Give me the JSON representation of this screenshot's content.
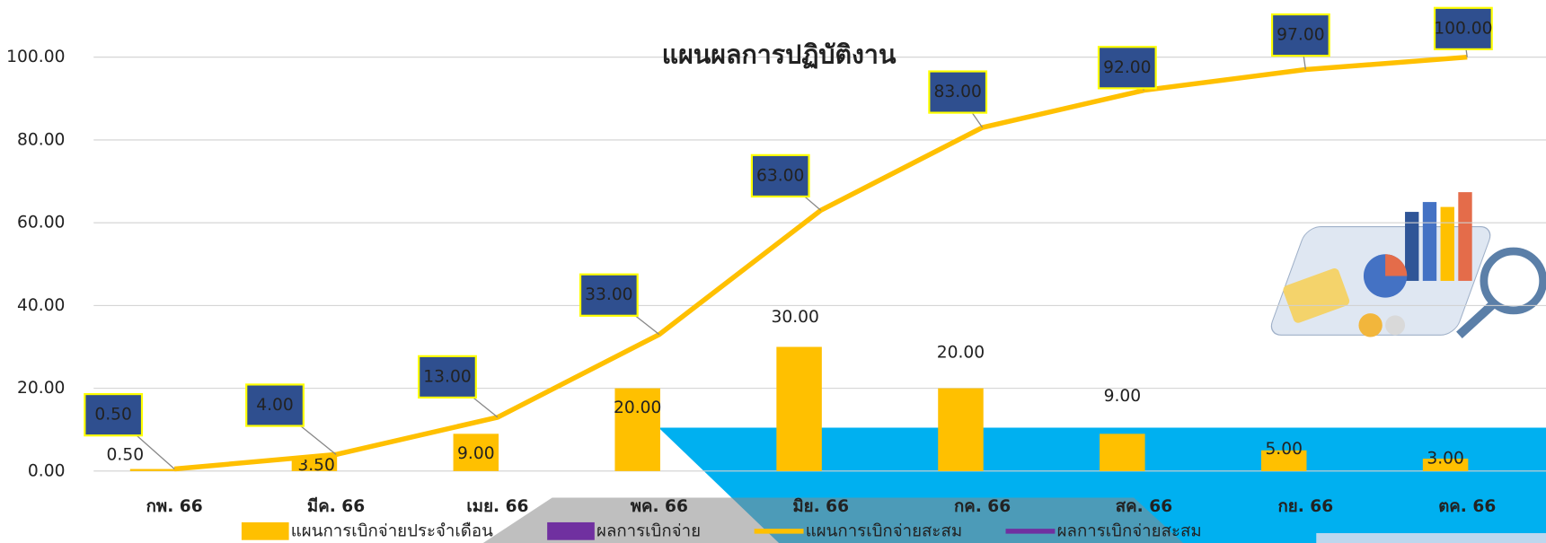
{
  "chart_data": {
    "type": "combo",
    "title": "แผนผลการปฏิบัติงาน",
    "categories": [
      "กพ. 66",
      "มีค. 66",
      "เมย. 66",
      "พค. 66",
      "มิย. 66",
      "กค. 66",
      "สค. 66",
      "กย. 66",
      "ตค. 66"
    ],
    "ylim": [
      0,
      100
    ],
    "yticks": [
      {
        "value": 0,
        "label": "0.00"
      },
      {
        "value": 20,
        "label": "20.00"
      },
      {
        "value": 40,
        "label": "40.00"
      },
      {
        "value": 60,
        "label": "60.00"
      },
      {
        "value": 80,
        "label": "80.00"
      },
      {
        "value": 100,
        "label": "100.00"
      }
    ],
    "grid": true,
    "series": [
      {
        "name": "แผนการเบิกจ่ายประจำเดือน",
        "kind": "bar",
        "color": "#ffc000",
        "values": [
          0.5,
          3.5,
          9,
          20,
          30,
          20,
          9,
          5,
          3
        ],
        "value_labels": [
          "0.50",
          "3.50",
          "9.00",
          "20.00",
          "30.00",
          "20.00",
          "9.00",
          "5.00",
          "3.00"
        ]
      },
      {
        "name": "ผลการเบิกจ่าย",
        "kind": "bar",
        "color": "#7030a0",
        "values": [
          null,
          null,
          null,
          null,
          null,
          null,
          null,
          null,
          null
        ]
      },
      {
        "name": "แผนการเบิกจ่ายสะสม",
        "kind": "line",
        "color": "#ffc000",
        "values": [
          0.5,
          4,
          13,
          33,
          63,
          83,
          92,
          97,
          100
        ],
        "value_labels": [
          "0.50",
          "4.00",
          "13.00",
          "33.00",
          "63.00",
          "83.00",
          "92.00",
          "97.00",
          "100.00"
        ]
      },
      {
        "name": "ผลการเบิกจ่ายสะสม",
        "kind": "line",
        "color": "#7030a0",
        "values": [
          null,
          null,
          null,
          null,
          null,
          null,
          null,
          null,
          null
        ]
      }
    ]
  }
}
